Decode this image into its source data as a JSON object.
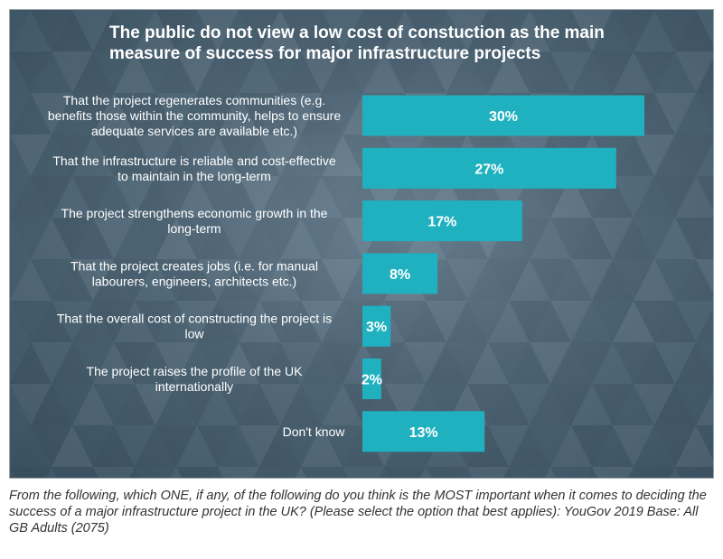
{
  "chart_data": {
    "type": "bar",
    "orientation": "horizontal",
    "title_lines": [
      "The public do not view a low cost of constuction as the main",
      "measure of success for major infrastructure projects"
    ],
    "categories": [
      [
        "That the project regenerates communities (e.g.",
        "benefits those within the community, helps to ensure",
        "adequate services are available etc.)"
      ],
      [
        "That the infrastructure is reliable and cost-effective",
        "to maintain in the long-term"
      ],
      [
        "The project strengthens economic growth in the",
        "long-term"
      ],
      [
        "That the project creates jobs (i.e. for manual",
        "labourers, engineers, architects etc.)"
      ],
      [
        "That the overall cost of constructing the project is",
        "low"
      ],
      [
        "The project raises the profile of the UK",
        "internationally"
      ],
      [
        "Don't know"
      ]
    ],
    "values": [
      30,
      27,
      17,
      8,
      3,
      2,
      13
    ],
    "value_labels": [
      "30%",
      "27%",
      "17%",
      "8%",
      "3%",
      "2%",
      "13%"
    ],
    "bar_color": "#1fb1c0",
    "xlim": [
      0,
      30
    ]
  },
  "caption": "From the following, which ONE, if any, of the following do you think is the MOST important when it comes to deciding the success of a major infrastructure project in the UK? (Please select the option that best applies): YouGov 2019 Base: All GB Adults (2075)"
}
